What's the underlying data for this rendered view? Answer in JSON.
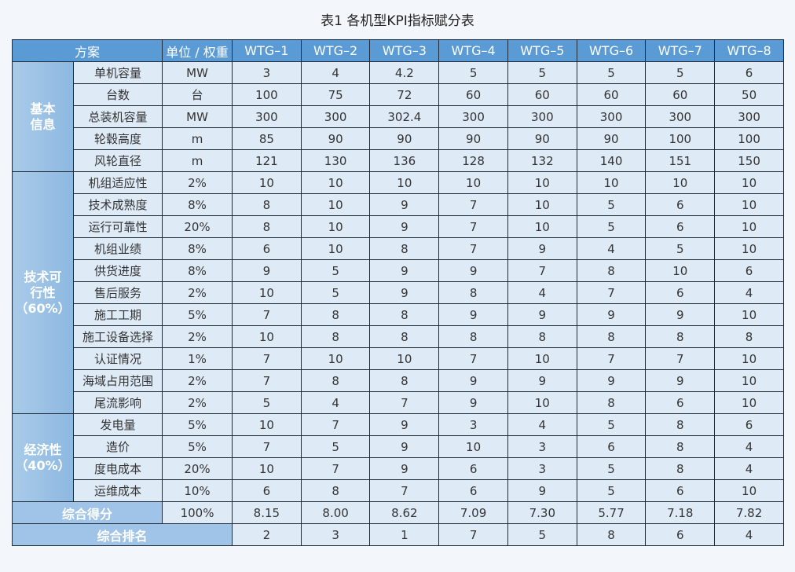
{
  "title": "表1 各机型KPI指标赋分表",
  "header": {
    "scheme": "方案",
    "unit_weight": "单位 / 权重",
    "models": [
      "WTG–1",
      "WTG–2",
      "WTG–3",
      "WTG–4",
      "WTG–5",
      "WTG–6",
      "WTG–7",
      "WTG–8"
    ]
  },
  "groups": [
    {
      "label": "基本\n信息",
      "rows": [
        {
          "name": "单机容量",
          "unit": "MW",
          "values": [
            "3",
            "4",
            "4.2",
            "5",
            "5",
            "5",
            "5",
            "6"
          ]
        },
        {
          "name": "台数",
          "unit": "台",
          "values": [
            "100",
            "75",
            "72",
            "60",
            "60",
            "60",
            "60",
            "50"
          ]
        },
        {
          "name": "总装机容量",
          "unit": "MW",
          "values": [
            "300",
            "300",
            "302.4",
            "300",
            "300",
            "300",
            "300",
            "300"
          ]
        },
        {
          "name": "轮毂高度",
          "unit": "m",
          "values": [
            "85",
            "90",
            "90",
            "90",
            "90",
            "90",
            "100",
            "100"
          ]
        },
        {
          "name": "风轮直径",
          "unit": "m",
          "values": [
            "121",
            "130",
            "136",
            "128",
            "132",
            "140",
            "151",
            "150"
          ]
        }
      ]
    },
    {
      "label": "技术可\n行性\n（60%）",
      "rows": [
        {
          "name": "机组适应性",
          "unit": "2%",
          "values": [
            "10",
            "10",
            "10",
            "10",
            "10",
            "10",
            "10",
            "10"
          ]
        },
        {
          "name": "技术成熟度",
          "unit": "8%",
          "values": [
            "8",
            "10",
            "9",
            "7",
            "10",
            "5",
            "6",
            "10"
          ]
        },
        {
          "name": "运行可靠性",
          "unit": "20%",
          "values": [
            "8",
            "10",
            "9",
            "7",
            "10",
            "5",
            "6",
            "10"
          ]
        },
        {
          "name": "机组业绩",
          "unit": "8%",
          "values": [
            "6",
            "10",
            "8",
            "7",
            "9",
            "4",
            "5",
            "10"
          ]
        },
        {
          "name": "供货进度",
          "unit": "8%",
          "values": [
            "9",
            "5",
            "9",
            "9",
            "7",
            "8",
            "10",
            "6"
          ]
        },
        {
          "name": "售后服务",
          "unit": "2%",
          "values": [
            "10",
            "5",
            "9",
            "8",
            "4",
            "7",
            "6",
            "4"
          ]
        },
        {
          "name": "施工工期",
          "unit": "5%",
          "values": [
            "7",
            "8",
            "8",
            "9",
            "9",
            "9",
            "9",
            "10"
          ]
        },
        {
          "name": "施工设备选择",
          "unit": "2%",
          "values": [
            "10",
            "8",
            "8",
            "8",
            "8",
            "8",
            "8",
            "8"
          ]
        },
        {
          "name": "认证情况",
          "unit": "1%",
          "values": [
            "7",
            "10",
            "10",
            "7",
            "10",
            "7",
            "7",
            "10"
          ]
        },
        {
          "name": "海域占用范围",
          "unit": "2%",
          "values": [
            "7",
            "8",
            "8",
            "9",
            "9",
            "9",
            "9",
            "10"
          ]
        },
        {
          "name": "尾流影响",
          "unit": "2%",
          "values": [
            "5",
            "4",
            "7",
            "9",
            "10",
            "8",
            "6",
            "10"
          ]
        }
      ]
    },
    {
      "label": "经济性\n（40%）",
      "rows": [
        {
          "name": "发电量",
          "unit": "5%",
          "values": [
            "10",
            "7",
            "9",
            "3",
            "4",
            "5",
            "8",
            "6"
          ]
        },
        {
          "name": "造价",
          "unit": "5%",
          "values": [
            "7",
            "5",
            "9",
            "10",
            "3",
            "6",
            "8",
            "4"
          ]
        },
        {
          "name": "度电成本",
          "unit": "20%",
          "values": [
            "10",
            "7",
            "9",
            "6",
            "3",
            "5",
            "8",
            "4"
          ]
        },
        {
          "name": "运维成本",
          "unit": "10%",
          "values": [
            "6",
            "8",
            "7",
            "6",
            "9",
            "5",
            "6",
            "10"
          ]
        }
      ]
    }
  ],
  "score": {
    "label": "综合得分",
    "weight": "100%",
    "values": [
      "8.15",
      "8.00",
      "8.62",
      "7.09",
      "7.30",
      "5.77",
      "7.18",
      "7.82"
    ]
  },
  "rank": {
    "label": "综合排名",
    "values": [
      "2",
      "3",
      "1",
      "7",
      "5",
      "8",
      "6",
      "4"
    ]
  }
}
